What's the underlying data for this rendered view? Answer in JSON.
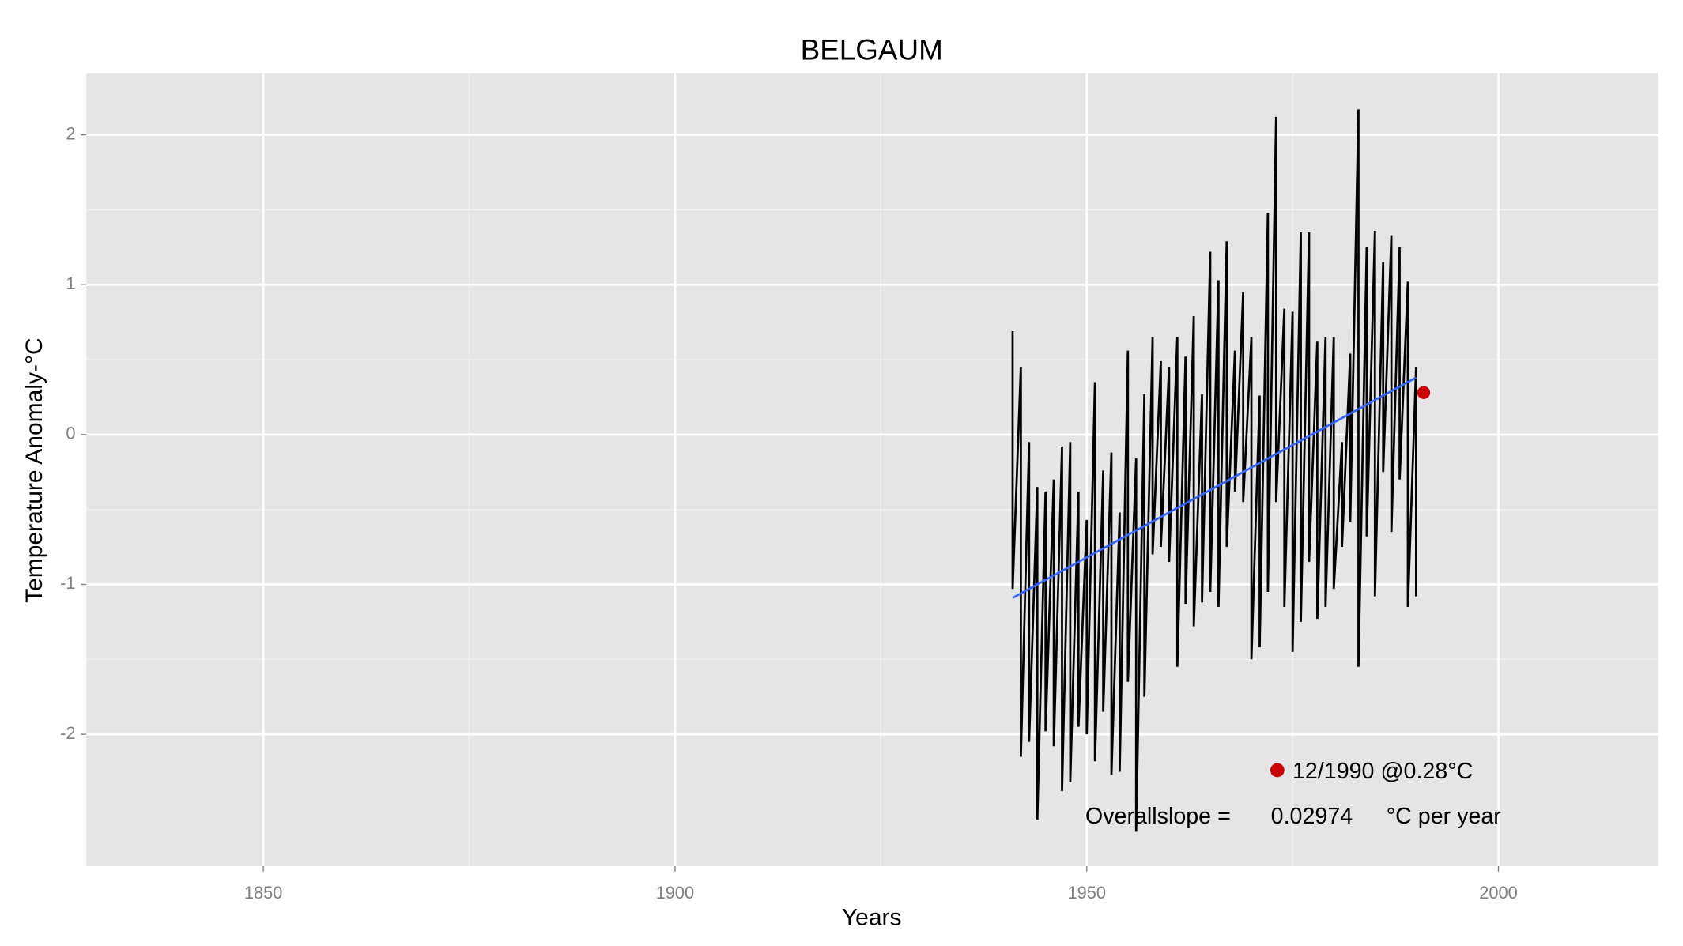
{
  "chart_data": {
    "type": "line",
    "title": "BELGAUM",
    "x_label": "Years",
    "y_label": "Temperature Anomaly-°C",
    "xlim": [
      1828.5,
      2019.4
    ],
    "ylim": [
      -2.88,
      2.41
    ],
    "xticks": [
      1850,
      1900,
      1950,
      2000
    ],
    "yticks": [
      -2,
      -1,
      0,
      1,
      2
    ],
    "grid": true,
    "series": [
      {
        "name": "Temperature Anomaly",
        "color": "#000000",
        "x": [
          1941,
          1941,
          1942,
          1942,
          1943,
          1943,
          1944,
          1944,
          1945,
          1945,
          1946,
          1946,
          1947,
          1947,
          1948,
          1948,
          1949,
          1949,
          1950,
          1950,
          1951,
          1951,
          1952,
          1952,
          1953,
          1953,
          1954,
          1954,
          1955,
          1955,
          1956,
          1956,
          1957,
          1957,
          1958,
          1958,
          1959,
          1959,
          1960,
          1960,
          1961,
          1961,
          1962,
          1962,
          1963,
          1963,
          1964,
          1964,
          1965,
          1965,
          1966,
          1966,
          1967,
          1967,
          1968,
          1968,
          1969,
          1969,
          1970,
          1970,
          1971,
          1971,
          1972,
          1972,
          1973,
          1973,
          1974,
          1974,
          1975,
          1975,
          1976,
          1976,
          1977,
          1977,
          1978,
          1978,
          1979,
          1979,
          1980,
          1980,
          1981,
          1981,
          1982,
          1982,
          1983,
          1983,
          1984,
          1984,
          1985,
          1985,
          1986,
          1986,
          1987,
          1987,
          1988,
          1988,
          1989,
          1989,
          1990,
          1990
        ],
        "values": [
          0.69,
          -1.03,
          0.45,
          -2.15,
          -0.05,
          -2.05,
          -0.35,
          -2.57,
          -0.38,
          -1.98,
          -0.3,
          -2.08,
          -0.08,
          -2.38,
          -0.05,
          -2.32,
          -0.38,
          -1.95,
          -0.57,
          -2.0,
          0.35,
          -2.18,
          -0.24,
          -1.85,
          -0.12,
          -2.27,
          -0.52,
          -2.25,
          0.56,
          -1.65,
          -0.16,
          -2.65,
          0.27,
          -1.75,
          0.65,
          -0.8,
          0.49,
          -0.75,
          0.45,
          -0.85,
          0.65,
          -1.55,
          0.52,
          -1.13,
          0.79,
          -1.28,
          0.27,
          -1.12,
          1.22,
          -1.05,
          1.03,
          -1.15,
          1.29,
          -0.75,
          0.56,
          -0.38,
          0.95,
          -0.45,
          0.65,
          -1.5,
          0.26,
          -1.42,
          1.48,
          -1.05,
          2.12,
          -0.45,
          0.84,
          -1.15,
          0.82,
          -1.45,
          1.35,
          -1.25,
          1.35,
          -0.85,
          0.62,
          -1.23,
          0.65,
          -1.15,
          0.65,
          -1.03,
          -0.05,
          -0.75,
          0.54,
          -0.58,
          2.17,
          -1.55,
          1.25,
          -0.68,
          1.36,
          -1.08,
          1.15,
          -0.25,
          1.33,
          -0.65,
          1.25,
          -0.3,
          1.02,
          -1.15,
          0.45,
          -1.08
        ]
      }
    ],
    "trend": {
      "x": [
        1941,
        1990
      ],
      "values": [
        -1.09,
        0.38
      ],
      "color": "#3366FF"
    },
    "highlight": {
      "x": 1990.92,
      "value": 0.28,
      "color": "#CC0000",
      "label": "12/1990 @0.28°C"
    },
    "slope_label": "Overallslope =",
    "slope": 0.02974,
    "slope_unit": "°C per year"
  }
}
